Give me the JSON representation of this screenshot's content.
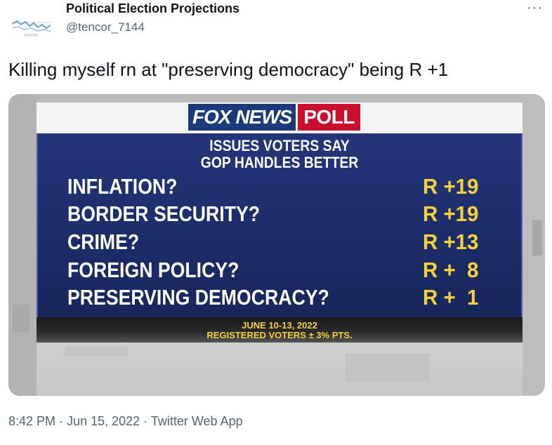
{
  "author": {
    "name": "Political Election Projections",
    "handle": "@tencor_7144"
  },
  "more_label": "···",
  "tweet": {
    "text": "Killing myself rn at \"preserving democracy\" being R +1"
  },
  "media": {
    "logo_fox": "FOX NEWS",
    "logo_poll": "POLL",
    "subtitle_line1": "ISSUES VOTERS SAY",
    "subtitle_line2": "GOP HANDLES BETTER",
    "rows": [
      {
        "label": "INFLATION?",
        "value": "R +19"
      },
      {
        "label": "BORDER SECURITY?",
        "value": "R +19"
      },
      {
        "label": "CRIME?",
        "value": "R +13"
      },
      {
        "label": "FOREIGN POLICY?",
        "value": "R +  8"
      },
      {
        "label": "PRESERVING DEMOCRACY?",
        "value": "R +  1"
      }
    ],
    "footer_line1": "JUNE 10-13, 2022",
    "footer_line2": "REGISTERED VOTERS ± 3% PTS."
  },
  "meta": {
    "time": "8:42 PM",
    "separator": "·",
    "date": "Jun 15, 2022",
    "source": "Twitter Web App"
  },
  "colors": {
    "panel_blue": "#1e2f6e",
    "value_yellow": "#f5d23b",
    "fox_red": "#c8102e",
    "fox_blue": "#1b3a7a"
  }
}
